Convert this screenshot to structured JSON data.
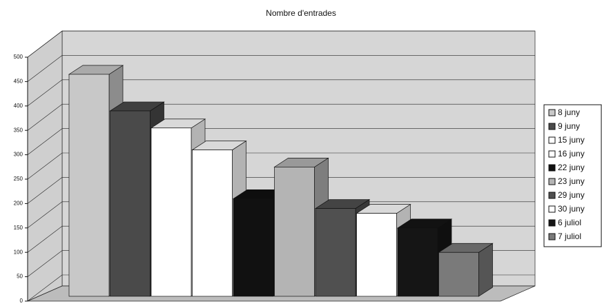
{
  "chart_data": {
    "type": "bar3d",
    "title": "Nombre d'entrades",
    "ylim": [
      0,
      500
    ],
    "yticks": [
      0,
      50,
      100,
      150,
      200,
      250,
      300,
      350,
      400,
      450,
      500
    ],
    "grid": true,
    "legend": "right",
    "series": [
      {
        "name": "8 juny",
        "color": "#c8c8c8",
        "values": [
          455
        ]
      },
      {
        "name": "9 juny",
        "color": "#4a4a4a",
        "values": [
          380
        ]
      },
      {
        "name": "15 juny",
        "color": "#ffffff",
        "values": [
          345
        ]
      },
      {
        "name": "16 juny",
        "color": "#ffffff",
        "values": [
          300
        ]
      },
      {
        "name": "22 juny",
        "color": "#111111",
        "values": [
          200
        ]
      },
      {
        "name": "23 juny",
        "color": "#b4b4b4",
        "values": [
          265
        ]
      },
      {
        "name": "29 juny",
        "color": "#505050",
        "values": [
          180
        ]
      },
      {
        "name": "30 juny",
        "color": "#ffffff",
        "values": [
          170
        ]
      },
      {
        "name": "6 juliol",
        "color": "#151515",
        "values": [
          140
        ]
      },
      {
        "name": "7 juliol",
        "color": "#7a7a7a",
        "values": [
          90
        ]
      }
    ]
  }
}
